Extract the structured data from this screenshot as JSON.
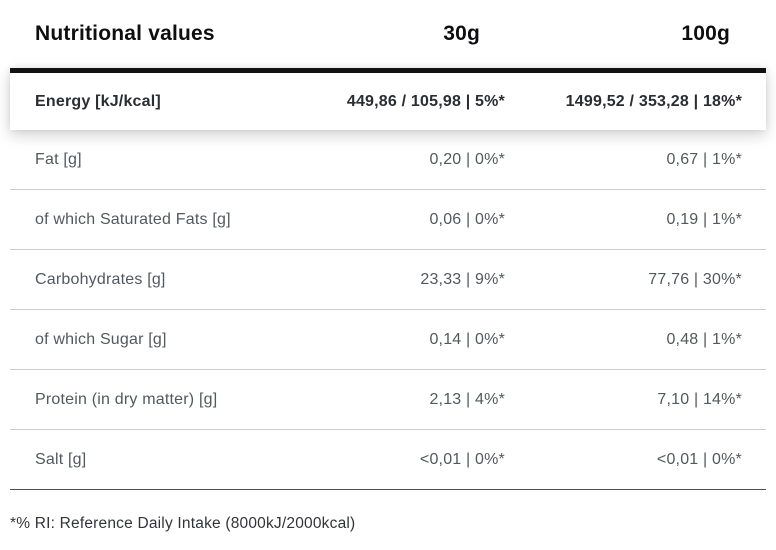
{
  "header": {
    "label": "Nutritional values",
    "col_30g": "30g",
    "col_100g": "100g"
  },
  "rows": [
    {
      "label": "Energy [kJ/kcal]",
      "per30": "449,86 / 105,98 | 5%*",
      "per100": "1499,52 / 353,28 | 18%*"
    },
    {
      "label": "Fat [g]",
      "per30": "0,20 | 0%*",
      "per100": "0,67 | 1%*"
    },
    {
      "label": "of which Saturated Fats [g]",
      "per30": "0,06 | 0%*",
      "per100": "0,19 | 1%*"
    },
    {
      "label": "Carbohydrates [g]",
      "per30": "23,33 | 9%*",
      "per100": "77,76 | 30%*"
    },
    {
      "label": "of which Sugar [g]",
      "per30": "0,14 | 0%*",
      "per100": "0,48 | 1%*"
    },
    {
      "label": "Protein (in dry matter) [g]",
      "per30": "2,13 | 4%*",
      "per100": "7,10 | 14%*"
    },
    {
      "label": "Salt [g]",
      "per30": "<0,01 | 0%*",
      "per100": "<0,01 | 0%*"
    }
  ],
  "footnote": "*% RI: Reference Daily Intake (8000kJ/2000kcal)",
  "colors": {
    "divider-strong": "#121212",
    "divider-light": "#cdced0",
    "divider-dark": "#4f4f4f",
    "text-primary": "#2c2d33",
    "text-secondary": "#53585e",
    "text-heading": "#0f0f12",
    "bg": "#ffffff"
  }
}
